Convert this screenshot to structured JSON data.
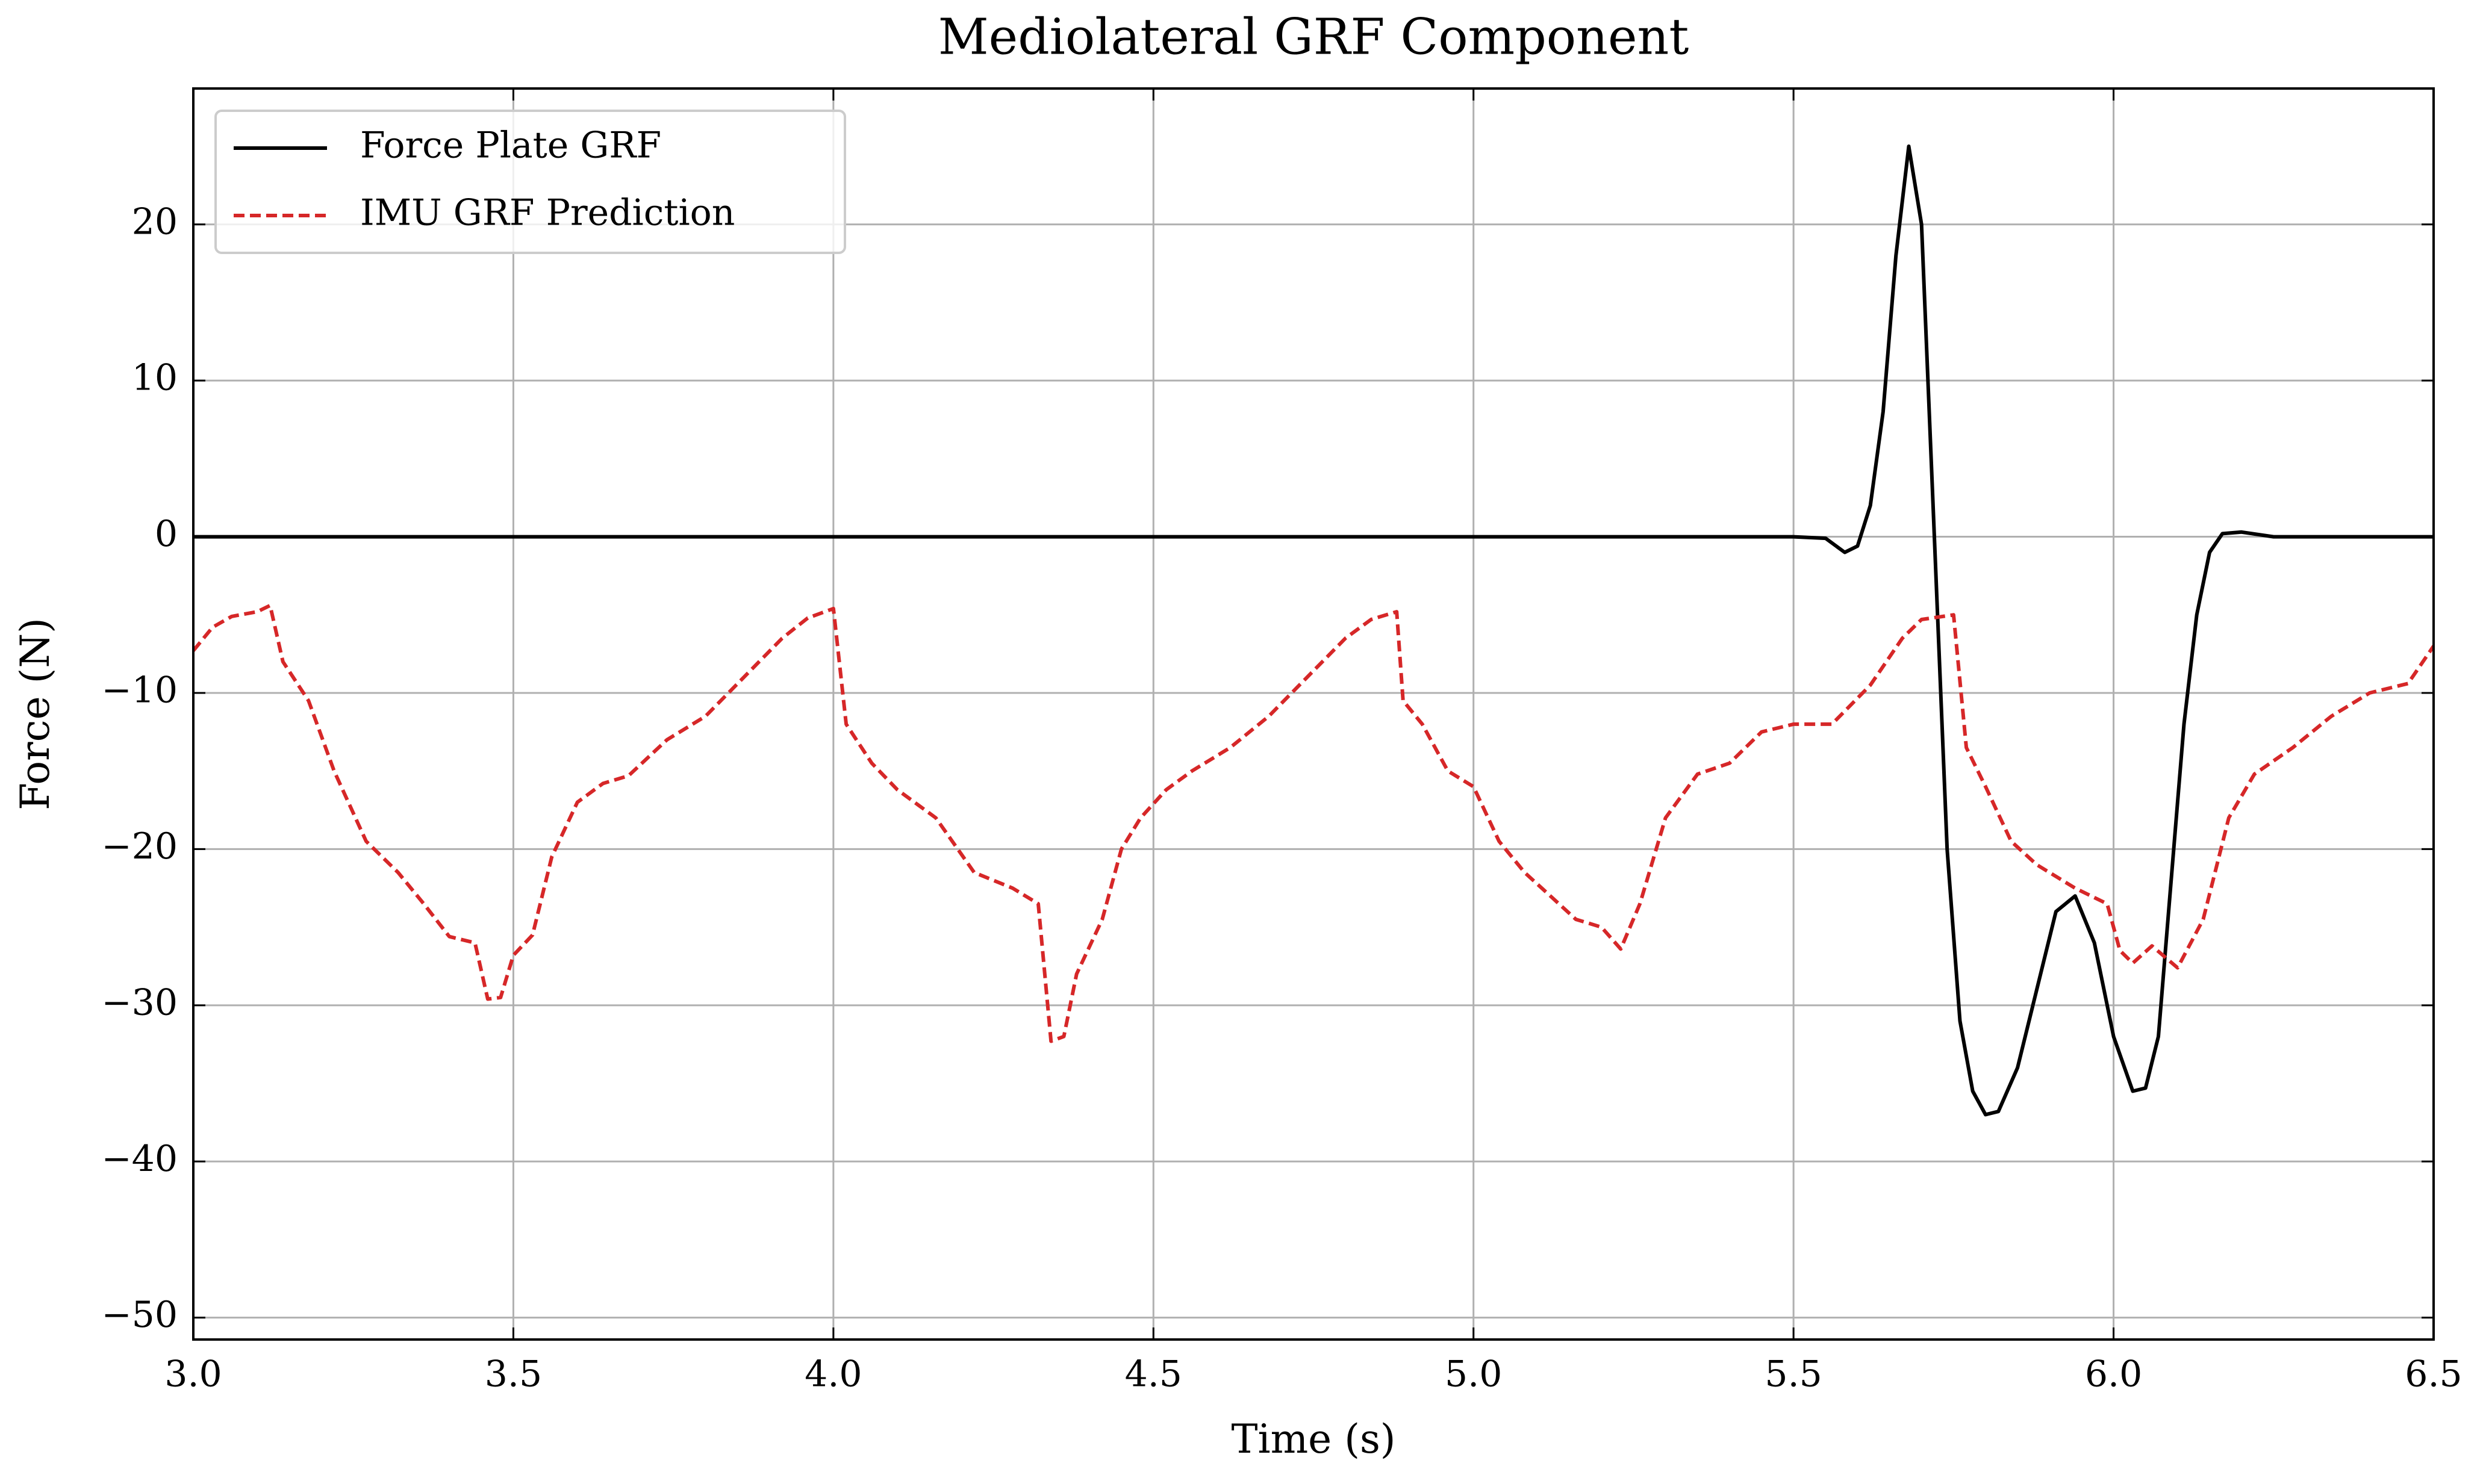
{
  "chart_data": {
    "type": "line",
    "title": "Mediolateral GRF Component",
    "xlabel": "Time (s)",
    "ylabel": "Force (N)",
    "xlim": [
      3.0,
      6.5
    ],
    "ylim": [
      -51.4,
      28.7
    ],
    "xticks": [
      {
        "value": 3.0,
        "label": "3.0"
      },
      {
        "value": 3.5,
        "label": "3.5"
      },
      {
        "value": 4.0,
        "label": "4.0"
      },
      {
        "value": 4.5,
        "label": "4.5"
      },
      {
        "value": 5.0,
        "label": "5.0"
      },
      {
        "value": 5.5,
        "label": "5.5"
      },
      {
        "value": 6.0,
        "label": "6.0"
      },
      {
        "value": 6.5,
        "label": "6.5"
      }
    ],
    "yticks": [
      {
        "value": -50,
        "label": "−50"
      },
      {
        "value": -40,
        "label": "−40"
      },
      {
        "value": -30,
        "label": "−30"
      },
      {
        "value": -20,
        "label": "−20"
      },
      {
        "value": -10,
        "label": "−10"
      },
      0,
      10,
      20
    ],
    "grid": true,
    "legend": "upper left",
    "series": [
      {
        "name": "Force Plate GRF",
        "color": "#000000",
        "linestyle": "solid",
        "x": [
          3.0,
          5.4,
          5.5,
          5.55,
          5.58,
          5.6,
          5.62,
          5.64,
          5.66,
          5.68,
          5.7,
          5.72,
          5.74,
          5.76,
          5.78,
          5.8,
          5.82,
          5.85,
          5.88,
          5.91,
          5.94,
          5.97,
          6.0,
          6.03,
          6.05,
          6.07,
          6.09,
          6.11,
          6.13,
          6.15,
          6.17,
          6.2,
          6.25,
          6.3,
          6.5
        ],
        "values": [
          0,
          0,
          0,
          -0.1,
          -1.0,
          -0.6,
          2,
          8,
          18,
          25,
          20,
          0,
          -20,
          -31,
          -35.5,
          -37,
          -36.8,
          -34,
          -29,
          -24,
          -23,
          -26,
          -32,
          -35.5,
          -35.3,
          -32,
          -22,
          -12,
          -5,
          -1,
          0.2,
          0.3,
          0,
          0,
          0
        ]
      },
      {
        "name": "IMU GRF Prediction",
        "color": "#d62728",
        "linestyle": "dashed",
        "x": [
          3.0,
          3.03,
          3.06,
          3.1,
          3.12,
          3.14,
          3.18,
          3.22,
          3.27,
          3.32,
          3.36,
          3.4,
          3.44,
          3.46,
          3.48,
          3.5,
          3.53,
          3.56,
          3.6,
          3.64,
          3.68,
          3.74,
          3.8,
          3.86,
          3.92,
          3.96,
          4.0,
          4.02,
          4.06,
          4.1,
          4.16,
          4.22,
          4.28,
          4.32,
          4.34,
          4.36,
          4.38,
          4.42,
          4.45,
          4.48,
          4.52,
          4.56,
          4.62,
          4.68,
          4.74,
          4.8,
          4.84,
          4.88,
          4.89,
          4.92,
          4.96,
          5.0,
          5.04,
          5.08,
          5.12,
          5.16,
          5.2,
          5.23,
          5.26,
          5.3,
          5.35,
          5.4,
          5.45,
          5.5,
          5.56,
          5.62,
          5.67,
          5.7,
          5.75,
          5.77,
          5.8,
          5.84,
          5.88,
          5.94,
          5.99,
          6.01,
          6.03,
          6.06,
          6.1,
          6.14,
          6.18,
          6.22,
          6.28,
          6.34,
          6.4,
          6.46,
          6.5
        ],
        "values": [
          -7.3,
          -5.8,
          -5.1,
          -4.8,
          -4.4,
          -8,
          -10.5,
          -15,
          -19.5,
          -21.5,
          -23.5,
          -25.6,
          -26,
          -29.6,
          -29.5,
          -26.8,
          -25.5,
          -20.5,
          -17,
          -15.8,
          -15.3,
          -13,
          -11.5,
          -9,
          -6.5,
          -5.2,
          -4.6,
          -12,
          -14.5,
          -16.2,
          -18,
          -21.5,
          -22.5,
          -23.5,
          -32.3,
          -32,
          -28,
          -24.5,
          -20,
          -18,
          -16.2,
          -15,
          -13.5,
          -11.5,
          -9,
          -6.5,
          -5.3,
          -4.8,
          -10.5,
          -12,
          -15,
          -16,
          -19.5,
          -21.5,
          -23,
          -24.5,
          -25,
          -26.4,
          -23.5,
          -18,
          -15.2,
          -14.5,
          -12.5,
          -12,
          -12,
          -9.5,
          -6.5,
          -5.3,
          -5,
          -13.5,
          -16,
          -19.5,
          -21,
          -22.5,
          -23.5,
          -26.5,
          -27.3,
          -26.2,
          -27.6,
          -24.5,
          -18,
          -15.2,
          -13.5,
          -11.5,
          -10,
          -9.4,
          -7
        ]
      }
    ]
  }
}
